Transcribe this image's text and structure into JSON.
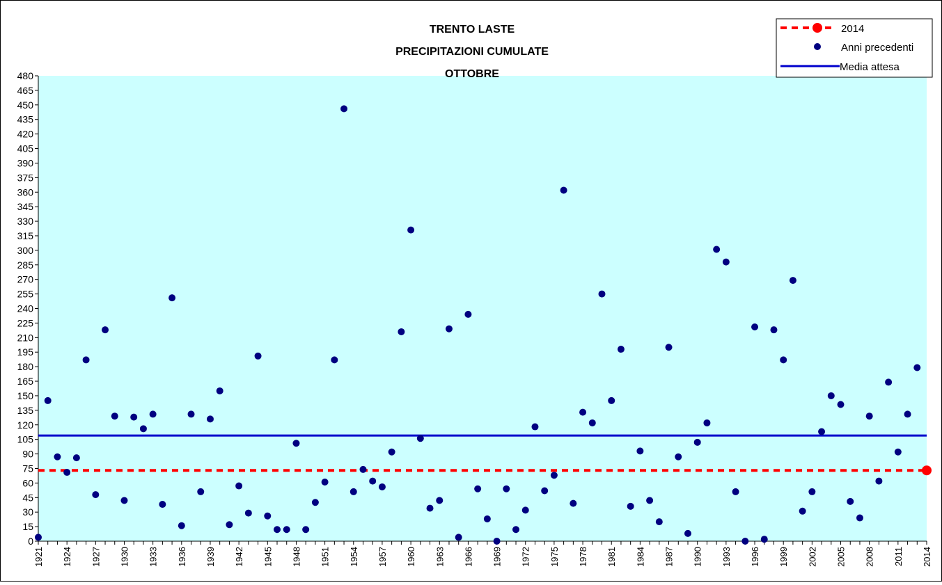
{
  "chart_data": {
    "type": "scatter",
    "title_lines": [
      "TRENTO LASTE",
      "PRECIPITAZIONI CUMULATE",
      "OTTOBRE"
    ],
    "xlabel": "",
    "ylabel": "",
    "xlim": [
      1921,
      2014
    ],
    "ylim": [
      0,
      480
    ],
    "ytick_step": 15,
    "xtick_labels": [
      "1921",
      "1924",
      "1927",
      "1930",
      "1933",
      "1936",
      "1939",
      "1942",
      "1945",
      "1948",
      "1951",
      "1954",
      "1957",
      "1960",
      "1963",
      "1966",
      "1969",
      "1972",
      "1975",
      "1978",
      "1981",
      "1984",
      "1987",
      "1990",
      "1993",
      "1996",
      "1999",
      "2002",
      "2005",
      "2008",
      "2011",
      "2014"
    ],
    "grid": false,
    "legend_position": "top-right",
    "colors": {
      "background": "#ccffff",
      "current_year": "#ff0000",
      "previous_years": "#000080",
      "expected_mean": "#0000cc"
    },
    "legend": {
      "current_year": "2014",
      "previous_years": "Anni precedenti",
      "expected_mean": "Media attesa"
    },
    "series": [
      {
        "name": "Anni precedenti",
        "x": [
          1921,
          1922,
          1923,
          1924,
          1925,
          1926,
          1927,
          1928,
          1929,
          1930,
          1931,
          1932,
          1933,
          1934,
          1935,
          1936,
          1937,
          1938,
          1939,
          1940,
          1941,
          1942,
          1943,
          1944,
          1945,
          1946,
          1947,
          1948,
          1949,
          1950,
          1951,
          1952,
          1953,
          1954,
          1955,
          1956,
          1957,
          1958,
          1959,
          1960,
          1961,
          1962,
          1963,
          1964,
          1965,
          1966,
          1967,
          1968,
          1969,
          1970,
          1971,
          1972,
          1973,
          1974,
          1975,
          1976,
          1977,
          1978,
          1979,
          1980,
          1981,
          1982,
          1983,
          1984,
          1985,
          1986,
          1987,
          1988,
          1989,
          1990,
          1991,
          1992,
          1993,
          1994,
          1995,
          1996,
          1997,
          1998,
          1999,
          2000,
          2001,
          2002,
          2003,
          2004,
          2005,
          2006,
          2007,
          2008,
          2009,
          2010,
          2011,
          2012,
          2013
        ],
        "y": [
          4,
          145,
          87,
          71,
          86,
          187,
          48,
          218,
          129,
          42,
          128,
          116,
          131,
          38,
          251,
          16,
          131,
          51,
          126,
          155,
          17,
          57,
          29,
          191,
          26,
          12,
          12,
          101,
          12,
          40,
          61,
          187,
          446,
          51,
          74,
          62,
          56,
          92,
          216,
          321,
          106,
          34,
          42,
          219,
          4,
          234,
          54,
          23,
          0,
          54,
          12,
          32,
          118,
          52,
          68,
          362,
          39,
          133,
          122,
          255,
          145,
          198,
          36,
          93,
          42,
          20,
          200,
          87,
          8,
          102,
          122,
          301,
          288,
          51,
          0,
          221,
          2,
          218,
          187,
          269,
          31,
          51,
          113,
          150,
          141,
          41,
          24,
          129,
          62,
          164,
          92,
          131,
          179
        ]
      },
      {
        "name": "2014",
        "x": [
          2014
        ],
        "y": [
          73
        ]
      }
    ],
    "reference_lines": [
      {
        "name": "Media attesa",
        "y": 109
      },
      {
        "name": "2014",
        "y": 73
      }
    ]
  }
}
